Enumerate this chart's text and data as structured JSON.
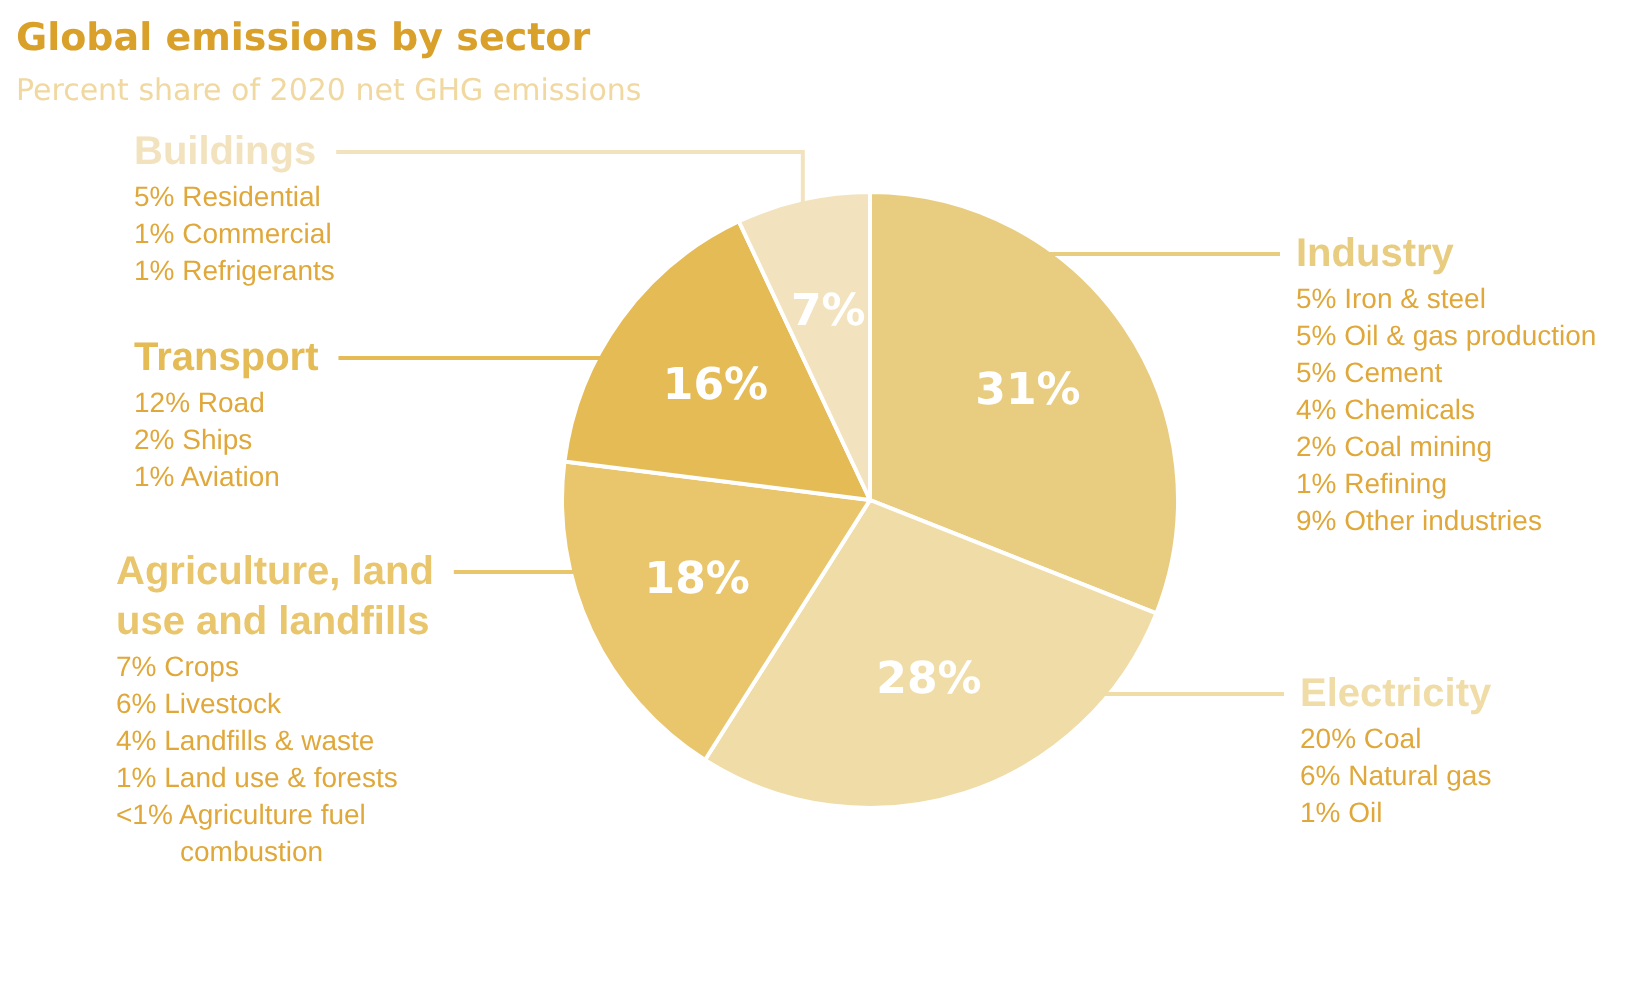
{
  "chart_data": {
    "type": "pie",
    "title": "Global emissions by sector",
    "subtitle": "Percent share of 2020 net GHG emissions",
    "categories": [
      "Industry",
      "Electricity",
      "Agriculture, land use and landfills",
      "Transport",
      "Buildings"
    ],
    "values": [
      31,
      28,
      18,
      16,
      7
    ],
    "colors": [
      "#e8cc7f",
      "#f0dca6",
      "#e9c56b",
      "#e4bb55",
      "#f2e3be"
    ],
    "value_labels": [
      "31%",
      "28%",
      "18%",
      "16%",
      "7%"
    ],
    "annotations": [
      "5% Iron & steel\n5% Oil & gas production\n5% Cement\n4% Chemicals\n2% Coal mining\n1% Refining\n9% Other industries",
      "20% Coal\n6% Natural gas\n1% Oil",
      "7% Crops\n6% Livestock\n4% Landfills & waste\n1% Land use & forests\n<1% Agriculture fuel combustion",
      "12% Road\n2% Ships\n1% Aviation",
      "5% Residential\n1% Commercial\n1% Refrigerants"
    ]
  }
}
